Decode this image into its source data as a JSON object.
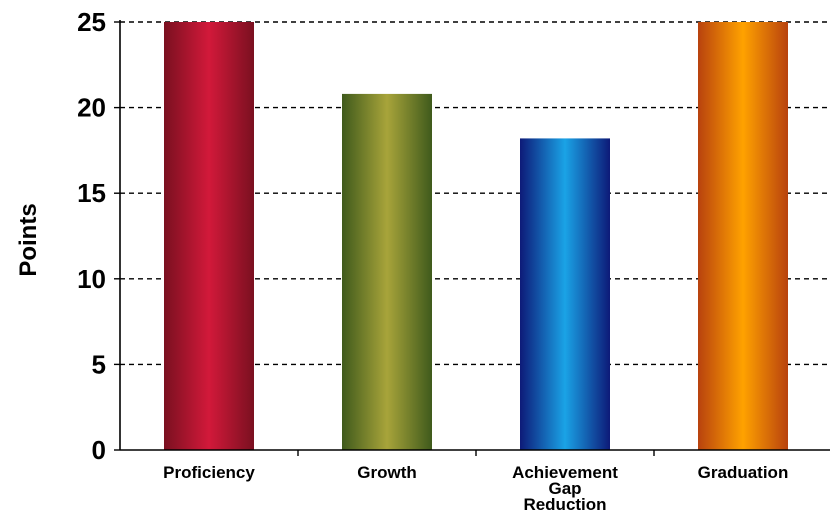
{
  "chart_data": {
    "type": "bar",
    "title": "",
    "xlabel": "",
    "ylabel": "Points",
    "ylim": [
      0,
      25
    ],
    "yticks": [
      0,
      5,
      10,
      15,
      20,
      25
    ],
    "grid": true,
    "legend": "none",
    "categories": [
      [
        "Proficiency"
      ],
      [
        "Growth"
      ],
      [
        "Achievement",
        "Gap",
        "Reduction"
      ],
      [
        "Graduation"
      ]
    ],
    "values": [
      25,
      20.8,
      18.2,
      25
    ],
    "bar_colors": [
      {
        "edge": "#7a1020",
        "mid": "#d2193a"
      },
      {
        "edge": "#3f5a1c",
        "mid": "#a8a43a"
      },
      {
        "edge": "#0d1a78",
        "mid": "#1aa3e6"
      },
      {
        "edge": "#b8420e",
        "mid": "#ffa200"
      }
    ]
  }
}
